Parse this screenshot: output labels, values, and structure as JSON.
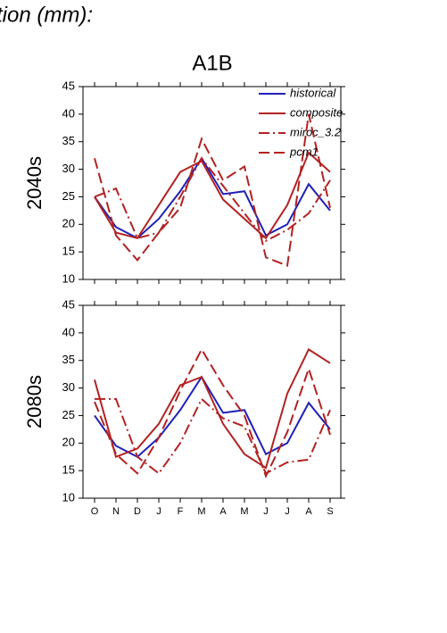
{
  "heading": "tion (mm):",
  "title": "A1B",
  "chart_data": [
    {
      "type": "line",
      "ylabel": "2040s",
      "categories": [
        null,
        null,
        null,
        null,
        null,
        null,
        null,
        null,
        null,
        null,
        null,
        null
      ],
      "ylim": [
        10,
        45
      ],
      "yticks": [
        10,
        15,
        20,
        25,
        30,
        35,
        40,
        45
      ],
      "legend": "upper right",
      "series": [
        {
          "name": "historical",
          "color": "#2020b8",
          "dash": "solid",
          "values": [
            25,
            19.5,
            17.5,
            21,
            26,
            32,
            25.5,
            26,
            18,
            20,
            27.3,
            22.5
          ]
        },
        {
          "name": "composite",
          "color": "#b22222",
          "dash": "solid",
          "values": [
            25,
            18.5,
            17.5,
            23.5,
            29.5,
            31.5,
            24.5,
            21,
            17.5,
            23.5,
            33,
            29.5
          ]
        },
        {
          "name": "miroc_3.2",
          "color": "#b22222",
          "dash": "dashdot",
          "values": [
            25,
            26.5,
            17.5,
            18.5,
            25,
            32,
            27,
            22,
            17,
            19,
            22,
            28
          ]
        },
        {
          "name": "pcm1",
          "color": "#b22222",
          "dash": "dash",
          "values": [
            32,
            18,
            13.5,
            18.5,
            23,
            35.5,
            28,
            30.5,
            14,
            12.5,
            40,
            23
          ]
        }
      ]
    },
    {
      "type": "line",
      "ylabel": "2080s",
      "categories": [
        "O",
        "N",
        "D",
        "J",
        "F",
        "M",
        "A",
        "M",
        "J",
        "J",
        "A",
        "S"
      ],
      "ylim": [
        10,
        45
      ],
      "yticks": [
        10,
        15,
        20,
        25,
        30,
        35,
        40,
        45
      ],
      "series": [
        {
          "color": "#2020b8",
          "dash": "solid",
          "values": [
            25,
            19.5,
            17.5,
            21,
            26,
            32,
            25.5,
            26,
            18,
            20,
            27.3,
            22.5
          ]
        },
        {
          "color": "#b22222",
          "dash": "solid",
          "values": [
            31.5,
            17.5,
            19,
            23.5,
            30.5,
            32,
            23.5,
            18,
            15.5,
            29,
            37,
            34.5
          ]
        },
        {
          "color": "#b22222",
          "dash": "dashdot",
          "values": [
            28,
            28,
            17.5,
            14.5,
            20,
            28,
            24.5,
            23,
            14.5,
            16.5,
            17,
            26
          ]
        },
        {
          "color": "#b22222",
          "dash": "dash",
          "values": [
            27.5,
            18,
            14.5,
            21,
            29.5,
            37,
            30.5,
            25,
            14,
            22,
            33.5,
            21.5
          ]
        }
      ]
    }
  ]
}
